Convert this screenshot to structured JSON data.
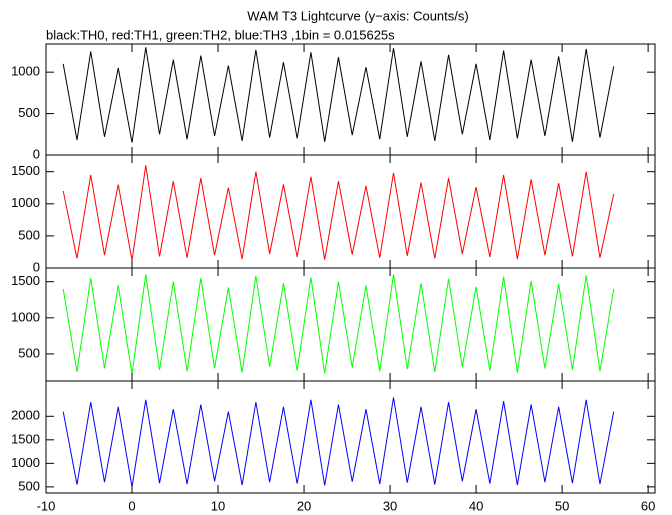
{
  "chart_data": [
    {
      "type": "line",
      "title": "WAM T3 Lightcurve (y−axis: Counts/s)",
      "subtitle": "black:TH0, red:TH1, green:TH2, blue:TH3 ,1bin = 0.015625s",
      "x": [
        -8,
        -6.4,
        -4.8,
        -3.2,
        -1.6,
        0,
        1.6,
        3.2,
        4.8,
        6.4,
        8,
        9.6,
        11.2,
        12.8,
        14.4,
        16,
        17.6,
        19.2,
        20.8,
        22.4,
        24,
        25.6,
        27.2,
        28.8,
        30.4,
        32,
        33.6,
        35.2,
        36.8,
        38.4,
        40,
        41.6,
        43.2,
        44.8,
        46.4,
        48,
        49.6,
        51.2,
        52.8,
        54.4,
        56
      ],
      "series": [
        {
          "color": "#000000",
          "values": [
            1100,
            180,
            1250,
            220,
            1050,
            150,
            1300,
            250,
            1150,
            190,
            1200,
            230,
            1080,
            170,
            1270,
            210,
            1120,
            200,
            1240,
            160,
            1180,
            240,
            1060,
            190,
            1290,
            220,
            1130,
            170,
            1210,
            250,
            1100,
            180,
            1260,
            200,
            1150,
            230,
            1190,
            160,
            1280,
            210,
            1070
          ]
        }
      ],
      "xlim": [
        -10,
        60.8
      ],
      "ylim": [
        0,
        1340
      ],
      "yticks": [
        0,
        500,
        1000
      ]
    },
    {
      "type": "line",
      "x": [
        -8,
        -6.4,
        -4.8,
        -3.2,
        -1.6,
        0,
        1.6,
        3.2,
        4.8,
        6.4,
        8,
        9.6,
        11.2,
        12.8,
        14.4,
        16,
        17.6,
        19.2,
        20.8,
        22.4,
        24,
        25.6,
        27.2,
        28.8,
        30.4,
        32,
        33.6,
        35.2,
        36.8,
        38.4,
        40,
        41.6,
        43.2,
        44.8,
        46.4,
        48,
        49.6,
        51.2,
        52.8,
        54.4,
        56
      ],
      "series": [
        {
          "color": "#ff0000",
          "values": [
            1200,
            150,
            1450,
            200,
            1300,
            120,
            1600,
            180,
            1350,
            160,
            1400,
            200,
            1250,
            140,
            1500,
            220,
            1300,
            170,
            1420,
            130,
            1350,
            210,
            1280,
            160,
            1480,
            190,
            1330,
            150,
            1400,
            220,
            1260,
            170,
            1450,
            140,
            1380,
            200,
            1320,
            180,
            1500,
            160,
            1150
          ]
        }
      ],
      "xlim": [
        -10,
        60.8
      ],
      "ylim": [
        0,
        1760
      ],
      "yticks": [
        0,
        500,
        1000,
        1500
      ]
    },
    {
      "type": "line",
      "x": [
        -8,
        -6.4,
        -4.8,
        -3.2,
        -1.6,
        0,
        1.6,
        3.2,
        4.8,
        6.4,
        8,
        9.6,
        11.2,
        12.8,
        14.4,
        16,
        17.6,
        19.2,
        20.8,
        22.4,
        24,
        25.6,
        27.2,
        28.8,
        30.4,
        32,
        33.6,
        35.2,
        36.8,
        38.4,
        40,
        41.6,
        43.2,
        44.8,
        46.4,
        48,
        49.6,
        51.2,
        52.8,
        54.4,
        56
      ],
      "series": [
        {
          "color": "#00ff00",
          "values": [
            1400,
            250,
            1550,
            300,
            1450,
            220,
            1600,
            280,
            1500,
            260,
            1550,
            300,
            1420,
            240,
            1580,
            320,
            1480,
            270,
            1560,
            230,
            1500,
            310,
            1450,
            260,
            1600,
            290,
            1480,
            250,
            1540,
            320,
            1430,
            270,
            1570,
            240,
            1510,
            300,
            1470,
            280,
            1590,
            260,
            1400
          ]
        }
      ],
      "xlim": [
        -10,
        60.8
      ],
      "ylim": [
        125,
        1690
      ],
      "yticks": [
        500,
        1000,
        1500
      ]
    },
    {
      "type": "line",
      "x": [
        -8,
        -6.4,
        -4.8,
        -3.2,
        -1.6,
        0,
        1.6,
        3.2,
        4.8,
        6.4,
        8,
        9.6,
        11.2,
        12.8,
        14.4,
        16,
        17.6,
        19.2,
        20.8,
        22.4,
        24,
        25.6,
        27.2,
        28.8,
        30.4,
        32,
        33.6,
        35.2,
        36.8,
        38.4,
        40,
        41.6,
        43.2,
        44.8,
        46.4,
        48,
        49.6,
        51.2,
        52.8,
        54.4,
        56
      ],
      "series": [
        {
          "color": "#0000ff",
          "values": [
            2100,
            550,
            2300,
            600,
            2200,
            500,
            2350,
            580,
            2150,
            560,
            2250,
            620,
            2100,
            540,
            2300,
            600,
            2200,
            570,
            2350,
            530,
            2250,
            610,
            2150,
            560,
            2400,
            590,
            2200,
            550,
            2300,
            620,
            2150,
            570,
            2320,
            540,
            2250,
            600,
            2200,
            580,
            2350,
            560,
            2100
          ]
        }
      ],
      "xlim": [
        -10,
        60.8
      ],
      "ylim": [
        370,
        2750
      ],
      "yticks": [
        500,
        1000,
        1500,
        2000
      ],
      "xticks": [
        -10,
        0,
        10,
        20,
        30,
        40,
        50,
        60
      ]
    }
  ]
}
